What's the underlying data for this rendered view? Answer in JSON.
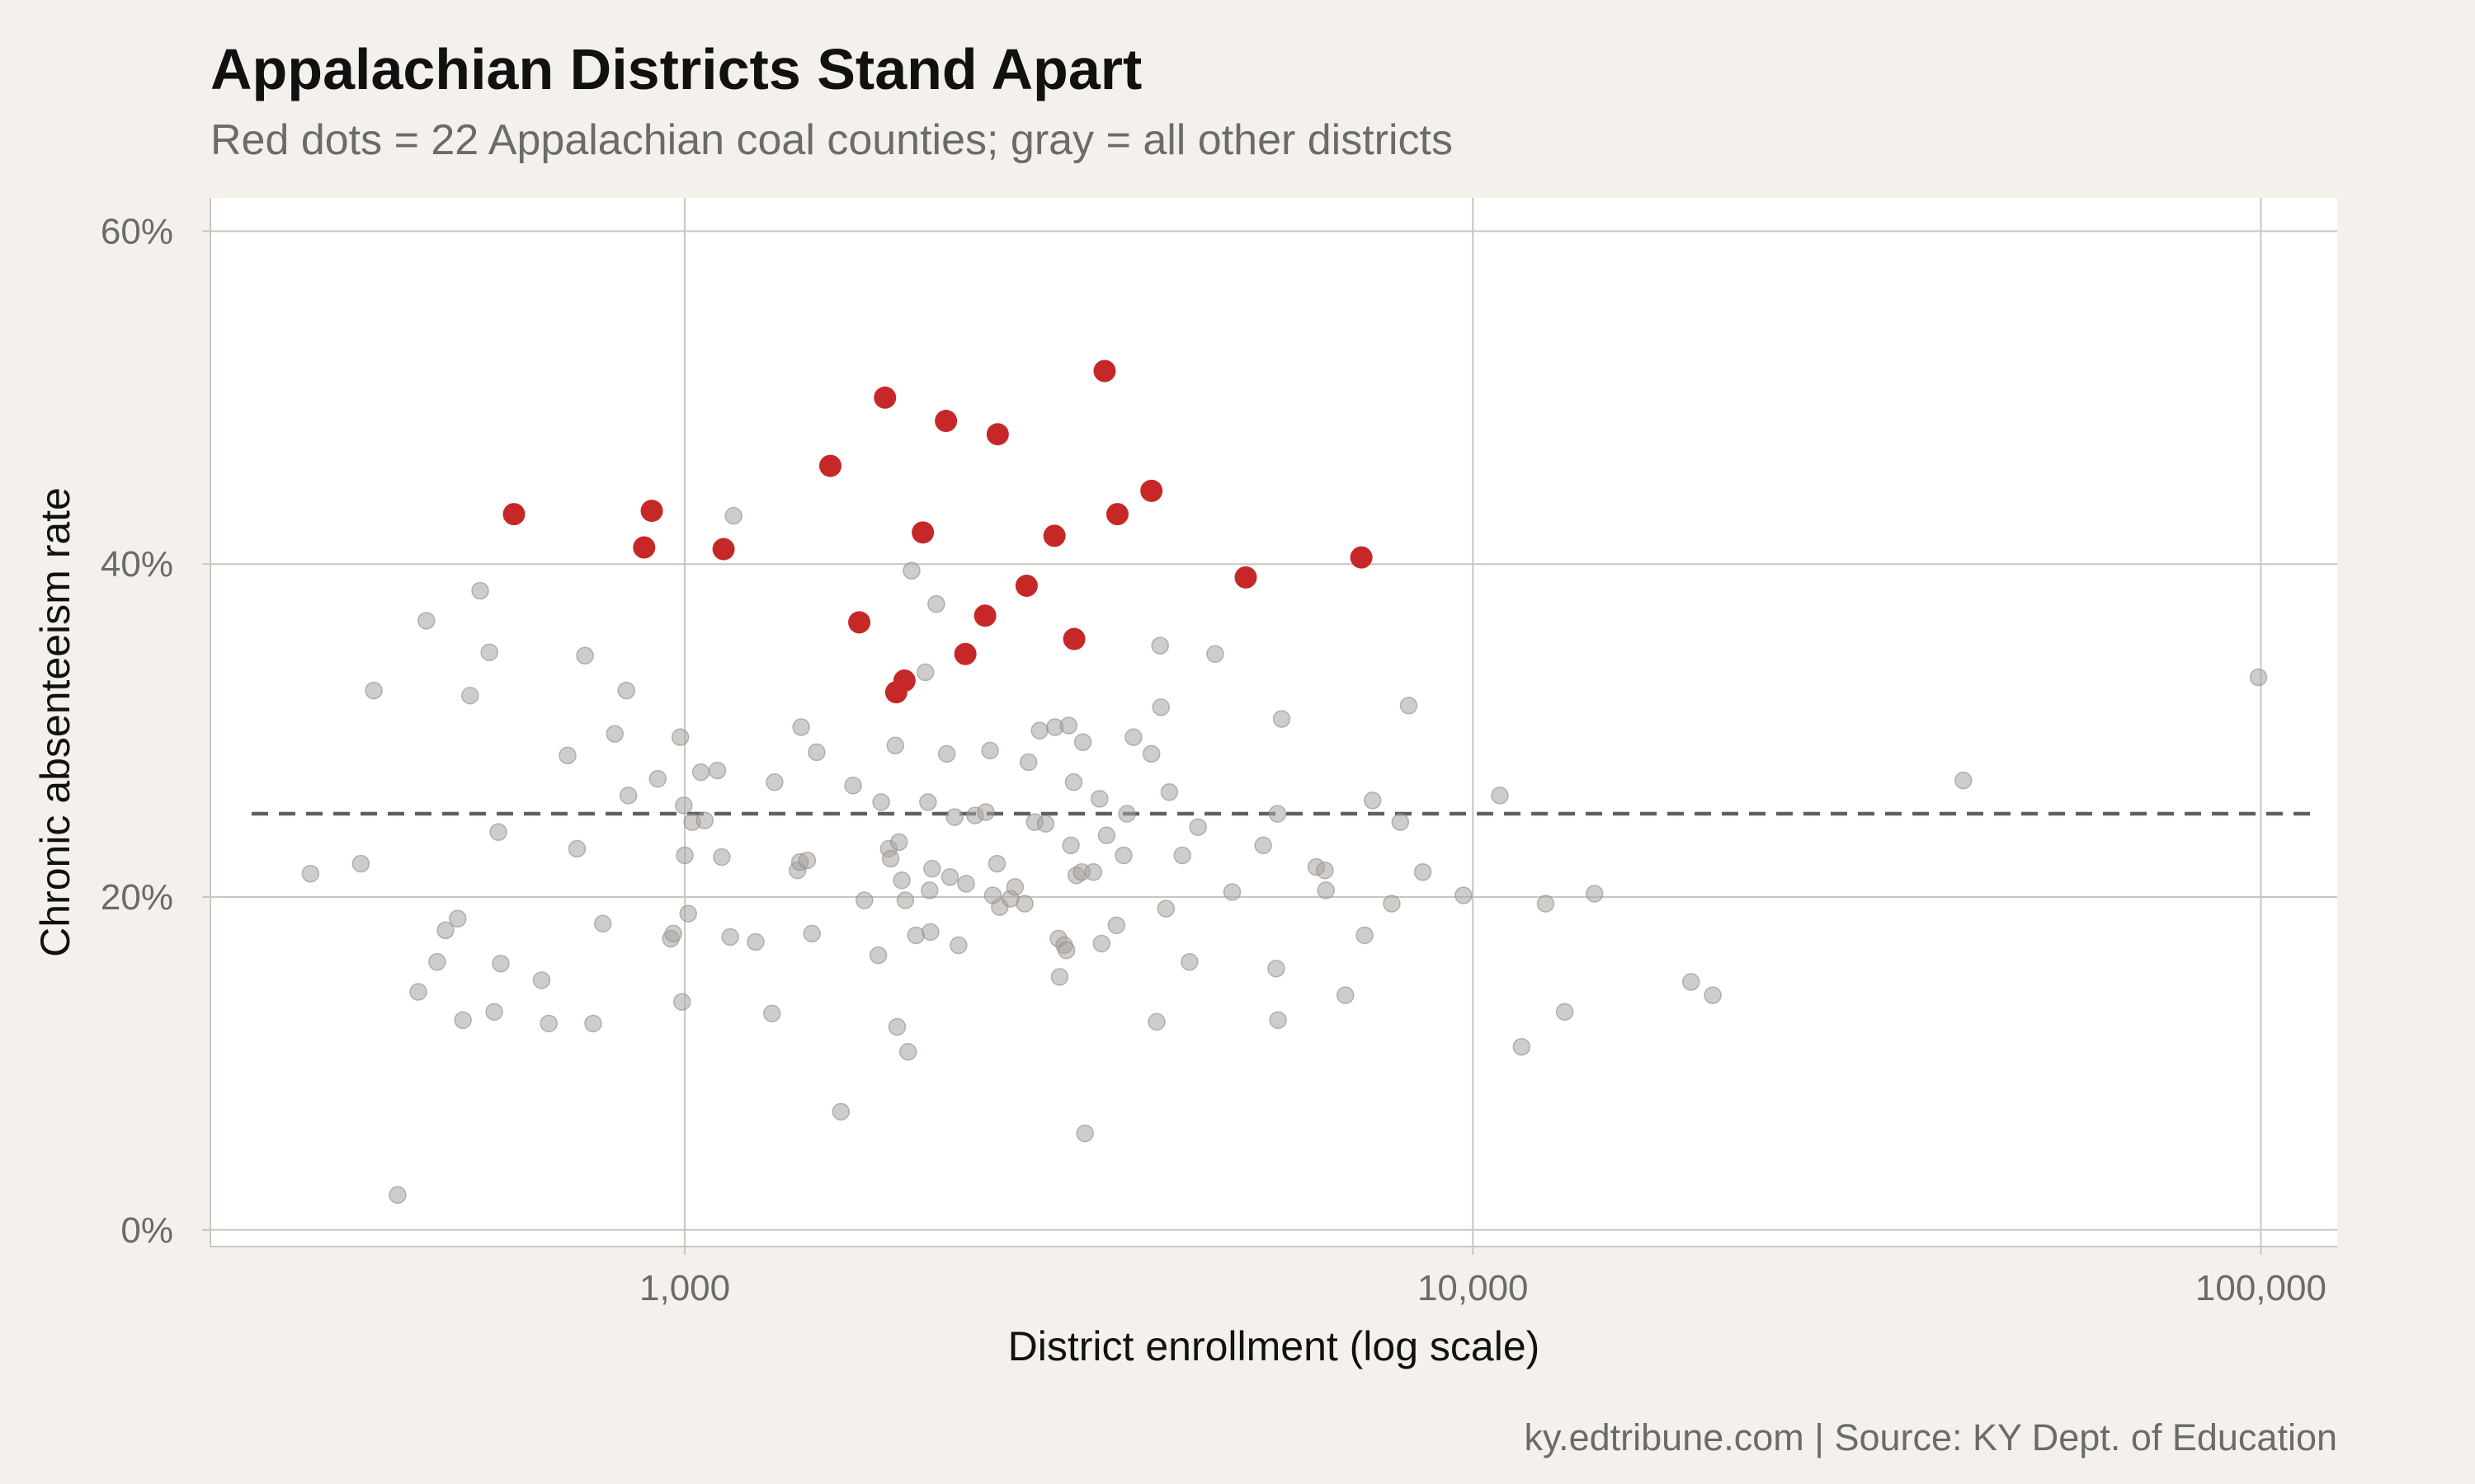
{
  "chart_data": {
    "type": "scatter",
    "title": "Appalachian Districts Stand Apart",
    "subtitle": "Red dots = 22 Appalachian coal counties; gray = all other districts",
    "xlabel": "District enrollment (log scale)",
    "ylabel": "Chronic absenteeism rate",
    "caption": "ky.edtribune.com | Source: KY Dept. of Education",
    "x_scale": "log10",
    "xlim": [
      250,
      125000
    ],
    "ylim": [
      -1,
      62
    ],
    "x_ticks": [
      {
        "value": 1000,
        "label": "1,000"
      },
      {
        "value": 10000,
        "label": "10,000"
      },
      {
        "value": 100000,
        "label": "100,000"
      }
    ],
    "y_ticks": [
      {
        "value": 0,
        "label": "0%"
      },
      {
        "value": 20,
        "label": "20%"
      },
      {
        "value": 40,
        "label": "40%"
      },
      {
        "value": 60,
        "label": "60%"
      }
    ],
    "reference_line": {
      "y": 25,
      "style": "dashed"
    },
    "colors": {
      "highlight": "#c62828",
      "other": "#a8a4a0",
      "grid": "#c9c6bf",
      "refline": "#5f5f5f",
      "panel": "#ffffff",
      "background": "#f4f1ec"
    },
    "series": [
      {
        "name": "Appalachian coal counties",
        "color": "#c62828",
        "points": [
          [
            607,
            43
          ],
          [
            908,
            43.2
          ],
          [
            888,
            41
          ],
          [
            1120,
            40.9
          ],
          [
            1530,
            45.9
          ],
          [
            1795,
            50
          ],
          [
            1665,
            36.5
          ],
          [
            1855,
            32.3
          ],
          [
            1900,
            33
          ],
          [
            2005,
            41.9
          ],
          [
            2145,
            48.6
          ],
          [
            2270,
            34.6
          ],
          [
            2405,
            36.9
          ],
          [
            2495,
            47.8
          ],
          [
            2715,
            38.7
          ],
          [
            2945,
            41.7
          ],
          [
            3120,
            35.5
          ],
          [
            3410,
            51.6
          ],
          [
            3540,
            43
          ],
          [
            3910,
            44.4
          ],
          [
            5150,
            39.2
          ],
          [
            7220,
            40.4
          ]
        ]
      },
      {
        "name": "All other districts",
        "color": "#a8a4a0",
        "points": [
          [
            335,
            21.4
          ],
          [
            388,
            22
          ],
          [
            403,
            32.4
          ],
          [
            432,
            2.1
          ],
          [
            459,
            14.3
          ],
          [
            470,
            36.6
          ],
          [
            485,
            16.1
          ],
          [
            497,
            18
          ],
          [
            515,
            18.7
          ],
          [
            523,
            12.6
          ],
          [
            534,
            32.1
          ],
          [
            550,
            38.4
          ],
          [
            565,
            34.7
          ],
          [
            573,
            13.1
          ],
          [
            580,
            23.9
          ],
          [
            584,
            16
          ],
          [
            658,
            15
          ],
          [
            672,
            12.4
          ],
          [
            710,
            28.5
          ],
          [
            730,
            22.9
          ],
          [
            747,
            34.5
          ],
          [
            765,
            12.4
          ],
          [
            787,
            18.4
          ],
          [
            815,
            29.8
          ],
          [
            843,
            32.4
          ],
          [
            848,
            26.1
          ],
          [
            924,
            27.1
          ],
          [
            960,
            17.5
          ],
          [
            967,
            17.8
          ],
          [
            987,
            29.6
          ],
          [
            992,
            13.7
          ],
          [
            997,
            25.5
          ],
          [
            1000,
            22.5
          ],
          [
            1010,
            19
          ],
          [
            1022,
            24.5
          ],
          [
            1048,
            27.5
          ],
          [
            1060,
            24.6
          ],
          [
            1100,
            27.6
          ],
          [
            1114,
            22.4
          ],
          [
            1142,
            17.6
          ],
          [
            1153,
            42.9
          ],
          [
            1230,
            17.3
          ],
          [
            1290,
            13
          ],
          [
            1300,
            26.9
          ],
          [
            1390,
            21.6
          ],
          [
            1400,
            22.1
          ],
          [
            1405,
            30.2
          ],
          [
            1430,
            22.2
          ],
          [
            1450,
            17.8
          ],
          [
            1470,
            28.7
          ],
          [
            1578,
            7.1
          ],
          [
            1635,
            26.7
          ],
          [
            1690,
            19.8
          ],
          [
            1760,
            16.5
          ],
          [
            1775,
            25.7
          ],
          [
            1815,
            22.9
          ],
          [
            1825,
            22.3
          ],
          [
            1850,
            29.1
          ],
          [
            1860,
            12.2
          ],
          [
            1870,
            23.3
          ],
          [
            1885,
            21
          ],
          [
            1905,
            19.8
          ],
          [
            1920,
            10.7
          ],
          [
            1940,
            39.6
          ],
          [
            1965,
            17.7
          ],
          [
            2020,
            33.5
          ],
          [
            2035,
            25.7
          ],
          [
            2045,
            20.4
          ],
          [
            2050,
            17.9
          ],
          [
            2060,
            21.7
          ],
          [
            2085,
            37.6
          ],
          [
            2150,
            28.6
          ],
          [
            2170,
            21.2
          ],
          [
            2200,
            24.8
          ],
          [
            2225,
            17.1
          ],
          [
            2275,
            20.8
          ],
          [
            2335,
            24.9
          ],
          [
            2410,
            25.1
          ],
          [
            2440,
            28.8
          ],
          [
            2460,
            20.1
          ],
          [
            2490,
            22
          ],
          [
            2510,
            19.4
          ],
          [
            2590,
            19.9
          ],
          [
            2625,
            20.6
          ],
          [
            2700,
            19.6
          ],
          [
            2730,
            28.1
          ],
          [
            2780,
            24.5
          ],
          [
            2820,
            30
          ],
          [
            2870,
            24.4
          ],
          [
            2950,
            30.2
          ],
          [
            2980,
            17.5
          ],
          [
            2990,
            15.2
          ],
          [
            3030,
            17.1
          ],
          [
            3050,
            16.8
          ],
          [
            3070,
            30.3
          ],
          [
            3090,
            23.1
          ],
          [
            3115,
            26.9
          ],
          [
            3140,
            21.3
          ],
          [
            3190,
            21.5
          ],
          [
            3200,
            29.3
          ],
          [
            3220,
            5.8
          ],
          [
            3300,
            21.5
          ],
          [
            3360,
            25.9
          ],
          [
            3380,
            17.2
          ],
          [
            3430,
            23.7
          ],
          [
            3530,
            18.3
          ],
          [
            3605,
            22.5
          ],
          [
            3640,
            25
          ],
          [
            3710,
            29.6
          ],
          [
            3910,
            28.6
          ],
          [
            3970,
            12.5
          ],
          [
            4010,
            35.1
          ],
          [
            4020,
            31.4
          ],
          [
            4080,
            19.3
          ],
          [
            4120,
            26.3
          ],
          [
            4280,
            22.5
          ],
          [
            4370,
            16.1
          ],
          [
            4480,
            24.2
          ],
          [
            4710,
            34.6
          ],
          [
            4950,
            20.3
          ],
          [
            5420,
            23.1
          ],
          [
            5630,
            15.7
          ],
          [
            5650,
            25
          ],
          [
            5660,
            12.6
          ],
          [
            5720,
            30.7
          ],
          [
            6330,
            21.8
          ],
          [
            6490,
            21.6
          ],
          [
            6510,
            20.4
          ],
          [
            6890,
            14.1
          ],
          [
            7290,
            17.7
          ],
          [
            7460,
            25.8
          ],
          [
            7890,
            19.6
          ],
          [
            8090,
            24.5
          ],
          [
            8290,
            31.5
          ],
          [
            8640,
            21.5
          ],
          [
            9730,
            20.1
          ],
          [
            10820,
            26.1
          ],
          [
            11530,
            11
          ],
          [
            12370,
            19.6
          ],
          [
            13080,
            13.1
          ],
          [
            14270,
            20.2
          ],
          [
            18920,
            14.9
          ],
          [
            20160,
            14.1
          ],
          [
            41920,
            27
          ],
          [
            99300,
            33.2
          ]
        ]
      }
    ]
  }
}
